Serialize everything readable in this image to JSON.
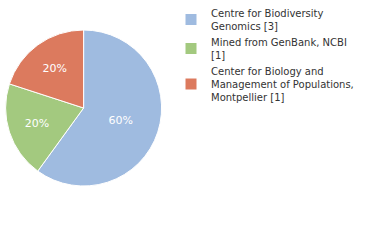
{
  "chart_data": {
    "type": "pie",
    "categories": [
      "Centre for Biodiversity Genomics [3]",
      "Mined from GenBank, NCBI [1]",
      "Center for Biology and Management of Populations, Montpellier [1]"
    ],
    "values": [
      60,
      20,
      20
    ],
    "value_labels": [
      "60%",
      "20%",
      "20%"
    ],
    "colors": [
      "#9fbbe0",
      "#a3c97f",
      "#dc7a5e"
    ],
    "data_labels": true,
    "legend": "top right"
  }
}
